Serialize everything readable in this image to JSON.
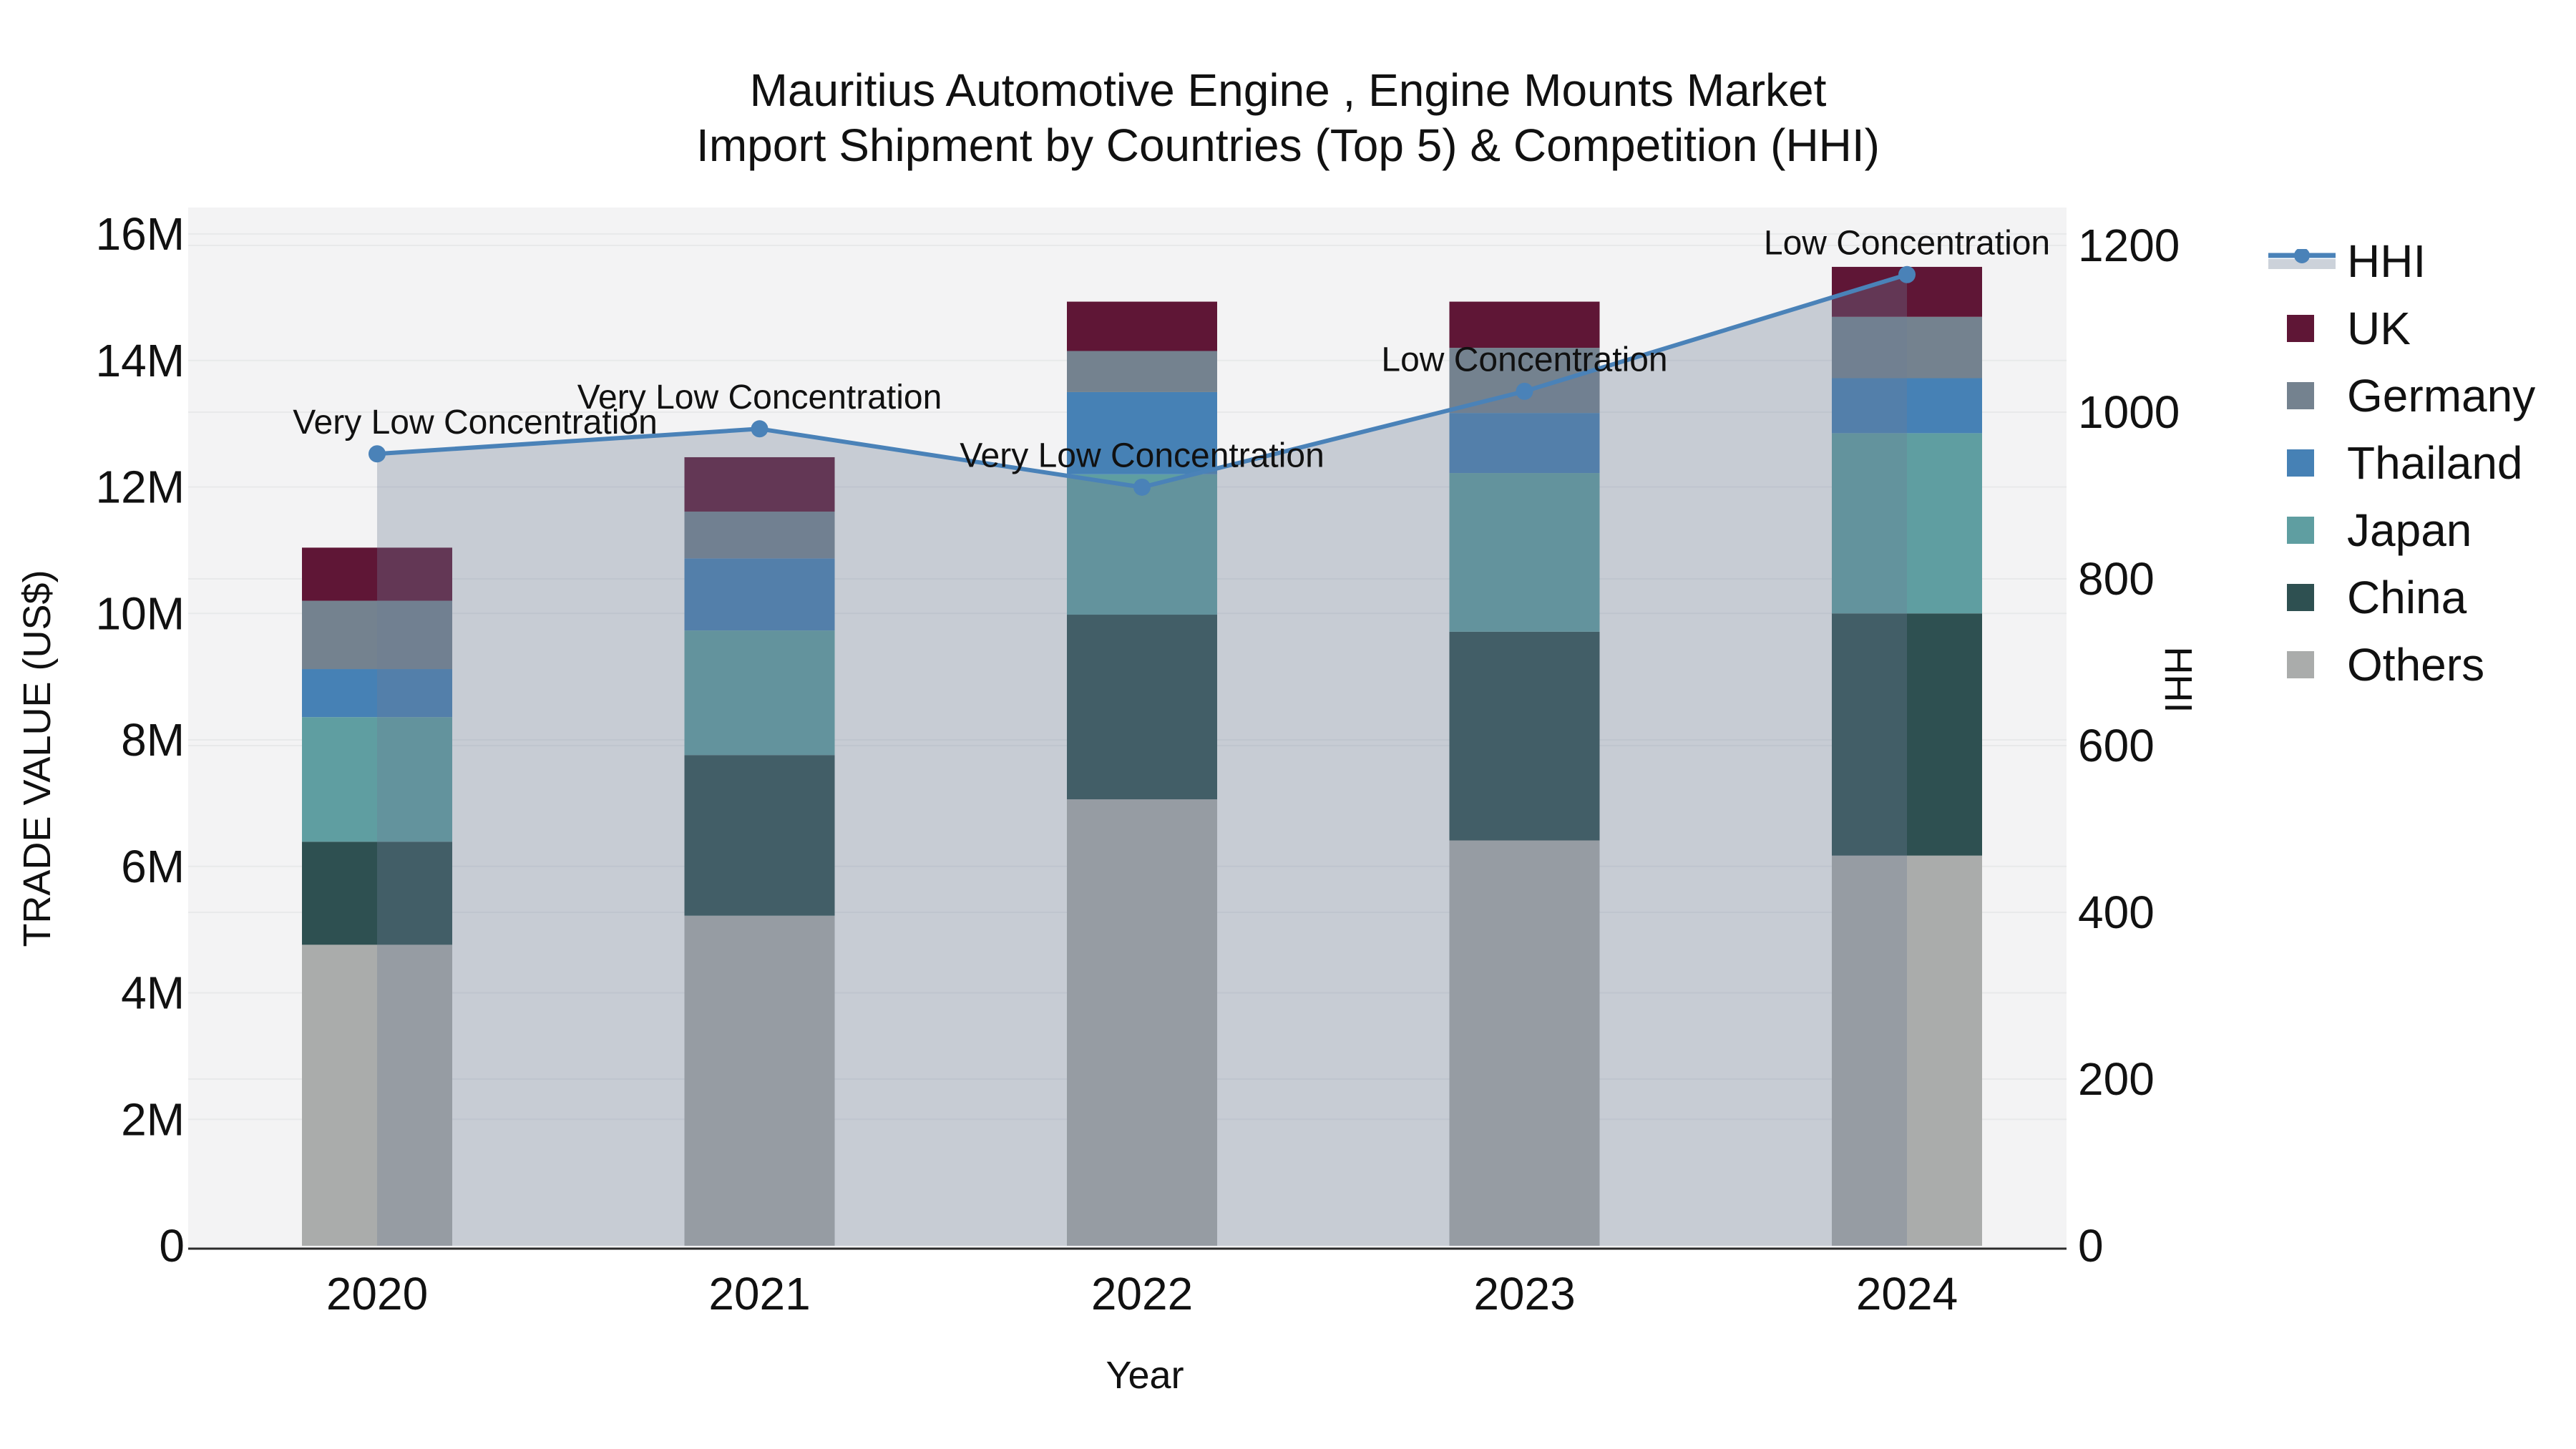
{
  "title": {
    "line1": "Mauritius Automotive Engine , Engine Mounts Market",
    "line2": "Import Shipment by Countries (Top 5) & Competition (HHI)"
  },
  "chart_data": {
    "type": "bar",
    "subtype": "stacked-bars-with-hhi-line-and-area",
    "title": "Mauritius Automotive Engine , Engine Mounts Market Import Shipment by Countries (Top 5) & Competition (HHI)",
    "categories": [
      "2020",
      "2021",
      "2022",
      "2023",
      "2024"
    ],
    "xlabel": "Year",
    "ylabel_left": "TRADE VALUE (US$)",
    "ylabel_right": "HHI",
    "bar_value_unit": "million USD",
    "series": [
      {
        "name": "Others",
        "color": "#aaacab",
        "values_musd": [
          4.76,
          5.22,
          7.06,
          6.41,
          6.17
        ]
      },
      {
        "name": "China",
        "color": "#2e5051",
        "values_musd": [
          1.63,
          2.54,
          2.92,
          3.3,
          3.83
        ]
      },
      {
        "name": "Japan",
        "color": "#5f9ea1",
        "values_musd": [
          1.97,
          1.97,
          2.22,
          2.51,
          2.85
        ]
      },
      {
        "name": "Thailand",
        "color": "#4681b5",
        "values_musd": [
          0.76,
          1.14,
          1.3,
          0.95,
          0.87
        ]
      },
      {
        "name": "Germany",
        "color": "#74828f",
        "values_musd": [
          1.08,
          0.74,
          0.65,
          1.03,
          0.97
        ]
      },
      {
        "name": "UK",
        "color": "#5f1636",
        "values_musd": [
          0.84,
          0.86,
          0.78,
          0.73,
          0.79
        ]
      }
    ],
    "bar_totals_musd": [
      11.04,
      12.47,
      14.93,
      14.93,
      15.48
    ],
    "line_series": {
      "name": "HHI",
      "color": "#4a82b8",
      "area_fill": "rgba(110,125,148,0.33)",
      "values": [
        950,
        980,
        910,
        1025,
        1165
      ]
    },
    "point_annotations": [
      "Very Low Concentration",
      "Very Low Concentration",
      "Very Low Concentration",
      "Low Concentration",
      "Low Concentration"
    ],
    "y_left_axis": {
      "ticks": [
        "0",
        "2M",
        "4M",
        "6M",
        "8M",
        "10M",
        "12M",
        "14M",
        "16M"
      ],
      "min": 0,
      "max_musd": 16
    },
    "y_right_axis": {
      "ticks": [
        "0",
        "200",
        "400",
        "600",
        "800",
        "1000",
        "1200"
      ],
      "min": 0,
      "max": 1200
    },
    "grid": "horizontal-both-axes",
    "legend_position": "outside-top-right",
    "legend_order": [
      "HHI",
      "UK",
      "Germany",
      "Thailand",
      "Japan",
      "China",
      "Others"
    ],
    "plot_background": "#f3f3f4",
    "gridline_color": "#e8e9ea",
    "axis_line_color": "#2b2b2b",
    "legend_hhi_band_color": "#ccd2da"
  }
}
